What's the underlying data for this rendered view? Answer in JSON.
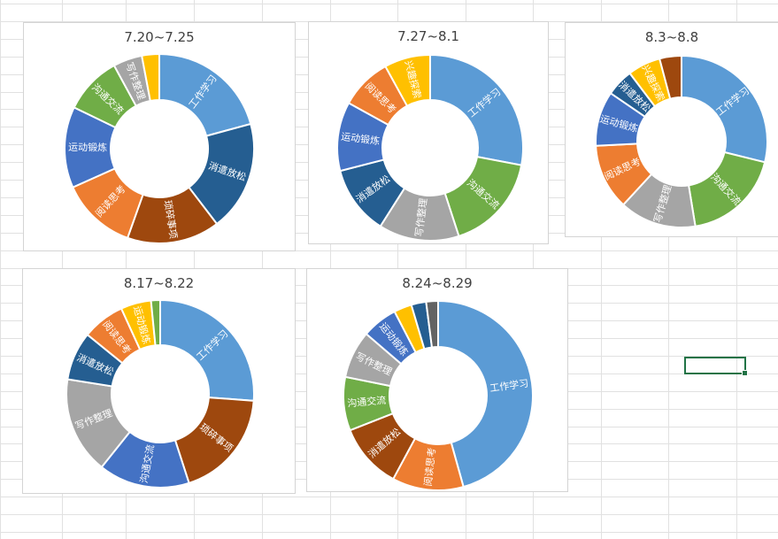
{
  "chart_data": [
    {
      "type": "donut",
      "title": "7.20~7.25",
      "slices": [
        {
          "label": "工作学习",
          "value": 21,
          "color": "#5b9bd5"
        },
        {
          "label": "消遣放松",
          "value": 19,
          "color": "#255e91"
        },
        {
          "label": "琐碎事项",
          "value": 16,
          "color": "#9e480e"
        },
        {
          "label": "阅读思考",
          "value": 13,
          "color": "#ed7d31"
        },
        {
          "label": "运动锻炼",
          "value": 14,
          "color": "#4472c4"
        },
        {
          "label": "沟通交流",
          "value": 10,
          "color": "#70ad47"
        },
        {
          "label": "写作整理",
          "value": 5,
          "color": "#a5a5a5"
        },
        {
          "label": "",
          "value": 3,
          "color": "#ffc000"
        }
      ]
    },
    {
      "type": "donut",
      "title": "7.27~8.1",
      "slices": [
        {
          "label": "工作学习",
          "value": 28,
          "color": "#5b9bd5"
        },
        {
          "label": "沟通交流",
          "value": 17,
          "color": "#70ad47"
        },
        {
          "label": "写作整理",
          "value": 14,
          "color": "#a5a5a5"
        },
        {
          "label": "消遣放松",
          "value": 12,
          "color": "#255e91"
        },
        {
          "label": "运动锻炼",
          "value": 12,
          "color": "#4472c4"
        },
        {
          "label": "阅读思考",
          "value": 9,
          "color": "#ed7d31"
        },
        {
          "label": "兴趣探索",
          "value": 8,
          "color": "#ffc000"
        }
      ]
    },
    {
      "type": "donut",
      "title": "8.3~8.8",
      "slices": [
        {
          "label": "工作学习",
          "value": 28,
          "color": "#5b9bd5"
        },
        {
          "label": "沟通交流",
          "value": 18,
          "color": "#70ad47"
        },
        {
          "label": "写作整理",
          "value": 14,
          "color": "#a5a5a5"
        },
        {
          "label": "阅读思考",
          "value": 12,
          "color": "#ed7d31"
        },
        {
          "label": "运动锻炼",
          "value": 10,
          "color": "#4472c4"
        },
        {
          "label": "消遣放松",
          "value": 5,
          "color": "#255e91"
        },
        {
          "label": "兴趣探索",
          "value": 6,
          "color": "#ffc000"
        },
        {
          "label": "",
          "value": 4,
          "color": "#9e480e"
        }
      ]
    },
    {
      "type": "donut",
      "title": "8.17~8.22",
      "slices": [
        {
          "label": "工作学习",
          "value": 25,
          "color": "#5b9bd5"
        },
        {
          "label": "琐碎事项",
          "value": 18,
          "color": "#9e480e"
        },
        {
          "label": "沟通交流",
          "value": 15,
          "color": "#4472c4"
        },
        {
          "label": "写作整理",
          "value": 16,
          "color": "#a5a5a5"
        },
        {
          "label": "消遣放松",
          "value": 8,
          "color": "#255e91"
        },
        {
          "label": "阅读思考",
          "value": 7,
          "color": "#ed7d31"
        },
        {
          "label": "运动锻炼",
          "value": 5,
          "color": "#ffc000"
        },
        {
          "label": "",
          "value": 1.5,
          "color": "#70ad47"
        }
      ]
    },
    {
      "type": "donut",
      "title": "8.24~8.29",
      "slices": [
        {
          "label": "工作学习",
          "value": 45,
          "color": "#5b9bd5"
        },
        {
          "label": "阅读思考",
          "value": 12,
          "color": "#ed7d31"
        },
        {
          "label": "消遣放松",
          "value": 11,
          "color": "#9e480e"
        },
        {
          "label": "沟通交流",
          "value": 9,
          "color": "#70ad47"
        },
        {
          "label": "写作整理",
          "value": 8,
          "color": "#a5a5a5"
        },
        {
          "label": "运动锻炼",
          "value": 6,
          "color": "#4472c4"
        },
        {
          "label": "",
          "value": 3,
          "color": "#ffc000"
        },
        {
          "label": "",
          "value": 2.5,
          "color": "#255e91"
        },
        {
          "label": "",
          "value": 2,
          "color": "#636363"
        }
      ]
    }
  ]
}
